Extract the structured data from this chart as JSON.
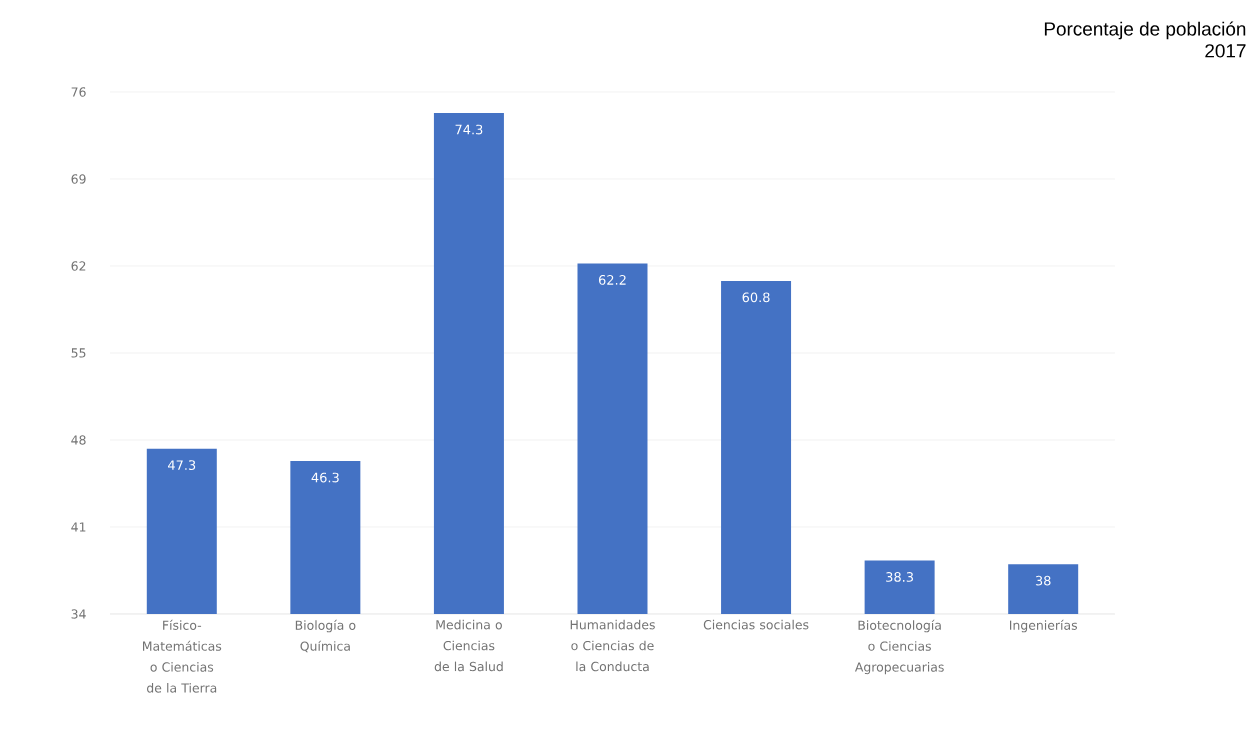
{
  "chart_data": {
    "type": "bar",
    "title": "Porcentaje de población",
    "subtitle": "2017",
    "categories": [
      "Físico-Matemáticas o Ciencias de la Tierra",
      "Biología o Química",
      "Medicina o Ciencias de la Salud",
      "Humanidades o Ciencias de la Conducta",
      "Ciencias sociales",
      "Biotecnología o Ciencias Agropecuarias",
      "Ingenierías"
    ],
    "values": [
      47.3,
      46.3,
      74.3,
      62.2,
      60.8,
      38.3,
      38
    ],
    "color": "#4472c4",
    "ylim": [
      34,
      76
    ],
    "yticks": [
      34,
      41,
      48,
      55,
      62,
      69,
      76
    ],
    "grid": "y",
    "data_labels": true
  }
}
